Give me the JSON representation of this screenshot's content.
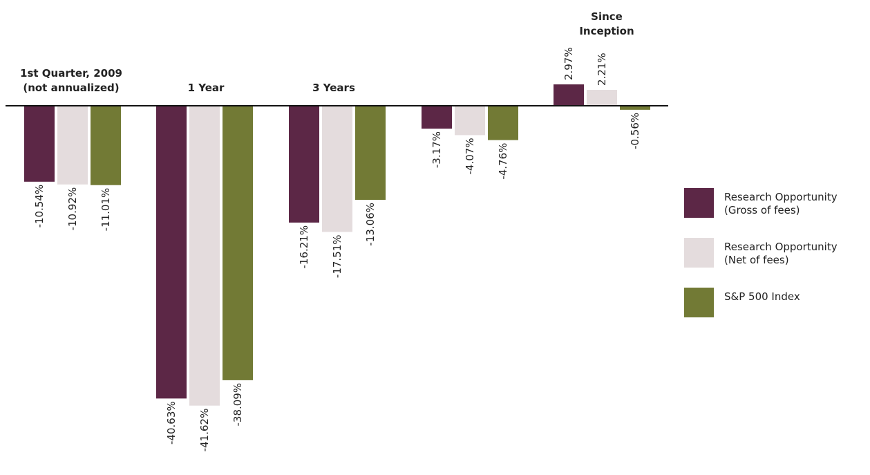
{
  "chart_data": {
    "type": "bar",
    "categories": [
      "1st Quarter, 2009\n(not annualized)",
      "1 Year",
      "3 Years",
      "",
      "Since\nInception"
    ],
    "series": [
      {
        "name": "Research Opportunity\n(Gross of fees)",
        "color": "#5c2746",
        "values": [
          -10.54,
          -40.63,
          -16.21,
          -3.17,
          2.97
        ],
        "labels": [
          "-10.54%",
          "-40.63%",
          "-16.21%",
          "-3.17%",
          "2.97%"
        ]
      },
      {
        "name": "Research Opportunity\n(Net of fees)",
        "color": "#e4dcdd",
        "values": [
          -10.92,
          -41.62,
          -17.51,
          -4.07,
          2.21
        ],
        "labels": [
          "-10.92%",
          "-41.62%",
          "-17.51%",
          "-4.07%",
          "2.21%"
        ]
      },
      {
        "name": "S&P 500 Index",
        "color": "#727a35",
        "values": [
          -11.01,
          -38.09,
          -13.06,
          -4.76,
          -0.56
        ],
        "labels": [
          "-11.01%",
          "-38.09%",
          "-13.06%",
          "-4.76%",
          "-0.56%"
        ]
      }
    ],
    "ylim": [
      -45,
      5
    ],
    "legend_position": "right",
    "grid": false
  }
}
